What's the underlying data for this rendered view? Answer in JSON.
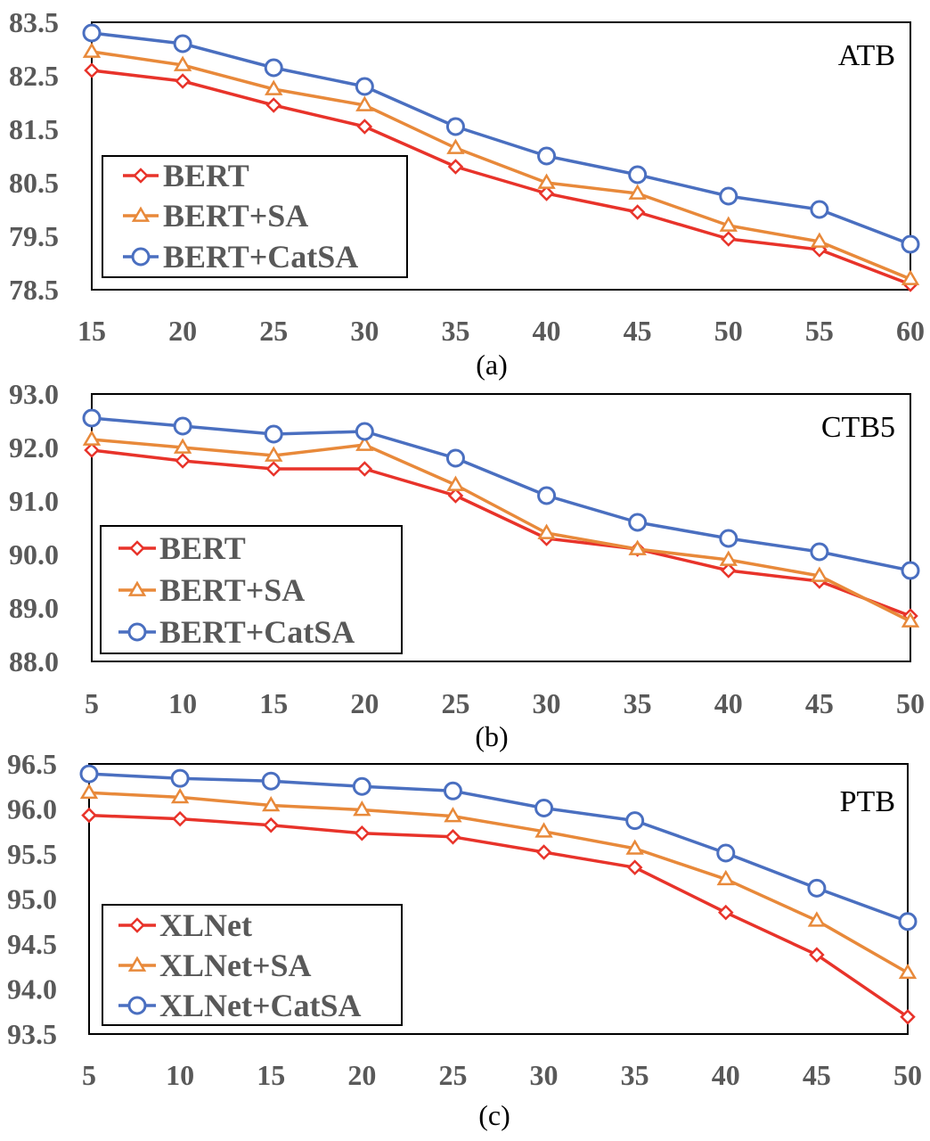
{
  "colors": {
    "series_1": "#e8332a",
    "series_2": "#e8893a",
    "series_3": "#4a6fc0",
    "tick_text": "#595959"
  },
  "chart_data": [
    {
      "type": "line",
      "title": "ATB",
      "caption": "(a)",
      "x": [
        15,
        20,
        25,
        30,
        35,
        40,
        45,
        50,
        55,
        60
      ],
      "x_tick_labels": [
        "15",
        "20",
        "25",
        "30",
        "35",
        "40",
        "45",
        "50",
        "55",
        "60"
      ],
      "y_tick_labels": [
        "83.5",
        "82.5",
        "81.5",
        "80.5",
        "79.5",
        "78.5"
      ],
      "ylim": [
        78.5,
        83.5
      ],
      "xlabel": "",
      "ylabel": "",
      "legend_position": "lower-left",
      "series": [
        {
          "name": "BERT",
          "marker": "diamond",
          "values": [
            82.6,
            82.4,
            81.95,
            81.55,
            80.8,
            80.3,
            79.95,
            79.45,
            79.25,
            78.6
          ]
        },
        {
          "name": "BERT+SA",
          "marker": "triangle",
          "values": [
            82.95,
            82.7,
            82.25,
            81.95,
            81.15,
            80.5,
            80.3,
            79.7,
            79.4,
            78.7
          ]
        },
        {
          "name": "BERT+CatSA",
          "marker": "circle",
          "values": [
            83.3,
            83.1,
            82.65,
            82.3,
            81.55,
            81.0,
            80.65,
            80.25,
            80.0,
            79.35
          ]
        }
      ]
    },
    {
      "type": "line",
      "title": "CTB5",
      "caption": "(b)",
      "x": [
        5,
        10,
        15,
        20,
        25,
        30,
        35,
        40,
        45,
        50
      ],
      "x_tick_labels": [
        "5",
        "10",
        "15",
        "20",
        "25",
        "30",
        "35",
        "40",
        "45",
        "50"
      ],
      "y_tick_labels": [
        "93.0",
        "92.0",
        "91.0",
        "90.0",
        "89.0",
        "88.0"
      ],
      "ylim": [
        88.0,
        93.0
      ],
      "xlabel": "",
      "ylabel": "",
      "legend_position": "lower-left",
      "series": [
        {
          "name": "BERT",
          "marker": "diamond",
          "values": [
            91.95,
            91.75,
            91.6,
            91.6,
            91.1,
            90.3,
            90.1,
            89.7,
            89.5,
            88.85
          ]
        },
        {
          "name": "BERT+SA",
          "marker": "triangle",
          "values": [
            92.15,
            92.0,
            91.85,
            92.05,
            91.3,
            90.4,
            90.1,
            89.9,
            89.6,
            88.75
          ]
        },
        {
          "name": "BERT+CatSA",
          "marker": "circle",
          "values": [
            92.55,
            92.4,
            92.25,
            92.3,
            91.8,
            91.1,
            90.6,
            90.3,
            90.05,
            89.7
          ]
        }
      ]
    },
    {
      "type": "line",
      "title": "PTB",
      "caption": "(c)",
      "x": [
        5,
        10,
        15,
        20,
        25,
        30,
        35,
        40,
        45,
        50
      ],
      "x_tick_labels": [
        "5",
        "10",
        "15",
        "20",
        "25",
        "30",
        "35",
        "40",
        "45",
        "50"
      ],
      "y_tick_labels": [
        "96.5",
        "96.0",
        "95.5",
        "95.0",
        "94.5",
        "94.0",
        "93.5"
      ],
      "ylim": [
        93.5,
        96.5
      ],
      "xlabel": "",
      "ylabel": "",
      "legend_position": "lower-left",
      "series": [
        {
          "name": "XLNet",
          "marker": "diamond",
          "values": [
            95.93,
            95.89,
            95.82,
            95.73,
            95.69,
            95.52,
            95.35,
            94.85,
            94.38,
            93.69
          ]
        },
        {
          "name": "XLNet+SA",
          "marker": "triangle",
          "values": [
            96.18,
            96.13,
            96.04,
            95.99,
            95.92,
            95.75,
            95.56,
            95.22,
            94.76,
            94.18
          ]
        },
        {
          "name": "XLNet+CatSA",
          "marker": "circle",
          "values": [
            96.39,
            96.34,
            96.31,
            96.25,
            96.2,
            96.01,
            95.87,
            95.51,
            95.12,
            94.75
          ]
        }
      ]
    }
  ]
}
